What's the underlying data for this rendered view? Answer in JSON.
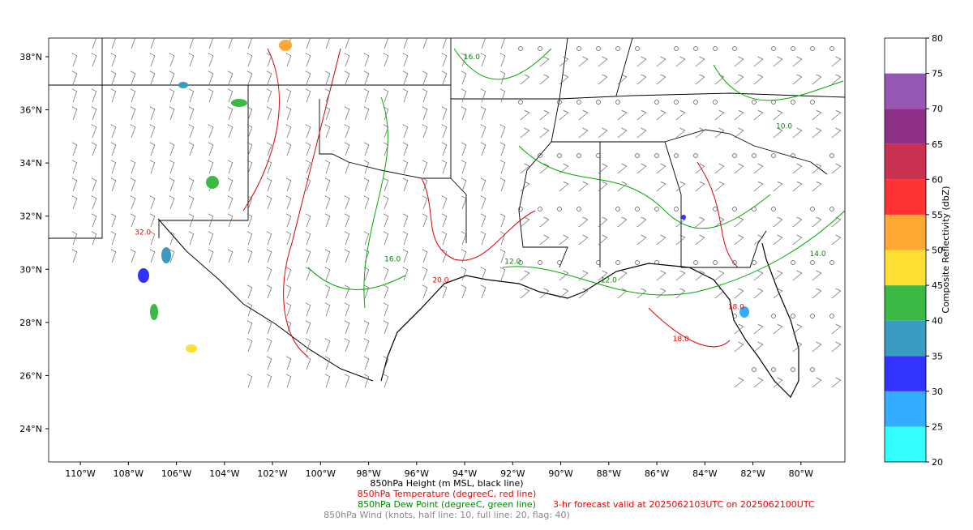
{
  "map": {
    "lon_range": [
      -111.32,
      -78.17
    ],
    "lat_range": [
      22.75,
      38.7
    ],
    "lon_ticks": [
      {
        "value": -110,
        "label": "110°W"
      },
      {
        "value": -108,
        "label": "108°W"
      },
      {
        "value": -106,
        "label": "106°W"
      },
      {
        "value": -104,
        "label": "104°W"
      },
      {
        "value": -102,
        "label": "102°W"
      },
      {
        "value": -100,
        "label": "100°W"
      },
      {
        "value": -98,
        "label": "98°W"
      },
      {
        "value": -96,
        "label": "96°W"
      },
      {
        "value": -94,
        "label": "94°W"
      },
      {
        "value": -92,
        "label": "92°W"
      },
      {
        "value": -90,
        "label": "90°W"
      },
      {
        "value": -88,
        "label": "88°W"
      },
      {
        "value": -86,
        "label": "86°W"
      },
      {
        "value": -84,
        "label": "84°W"
      },
      {
        "value": -82,
        "label": "82°W"
      },
      {
        "value": -80,
        "label": "80°W"
      }
    ],
    "lat_ticks": [
      {
        "value": 24,
        "label": "24°N"
      },
      {
        "value": 26,
        "label": "26°N"
      },
      {
        "value": 28,
        "label": "28°N"
      },
      {
        "value": 30,
        "label": "30°N"
      },
      {
        "value": 32,
        "label": "32°N"
      },
      {
        "value": 34,
        "label": "34°N"
      },
      {
        "value": 36,
        "label": "36°N"
      },
      {
        "value": 38,
        "label": "38°N"
      }
    ],
    "contour_labels": [
      {
        "text": "16.0",
        "lon": -93.7,
        "lat": 37.9,
        "color": "green"
      },
      {
        "text": "16.0",
        "lon": -97.0,
        "lat": 30.3,
        "color": "green"
      },
      {
        "text": "20.0",
        "lon": -95.0,
        "lat": 29.5,
        "color": "red"
      },
      {
        "text": "12.0",
        "lon": -92.0,
        "lat": 30.2,
        "color": "green"
      },
      {
        "text": "12.0",
        "lon": -88.0,
        "lat": 29.5,
        "color": "green"
      },
      {
        "text": "18.0",
        "lon": -82.7,
        "lat": 28.5,
        "color": "red"
      },
      {
        "text": "10.0",
        "lon": -80.7,
        "lat": 35.3,
        "color": "green"
      },
      {
        "text": "14.0",
        "lon": -79.3,
        "lat": 30.5,
        "color": "green"
      },
      {
        "text": "18.0",
        "lon": -85.0,
        "lat": 27.3,
        "color": "red"
      },
      {
        "text": "32.0",
        "lon": -107.4,
        "lat": 31.3,
        "color": "red"
      }
    ]
  },
  "colorbar": {
    "label": "Composite Reflectivity (dbZ)",
    "levels": [
      20,
      25,
      30,
      35,
      40,
      45,
      50,
      55,
      60,
      65,
      70,
      75,
      80
    ],
    "colors": [
      "#33ffff",
      "#33adff",
      "#3333ff",
      "#3a9abf",
      "#3cb944",
      "#ffde33",
      "#ffa833",
      "#ff3333",
      "#c83250",
      "#8e2f87",
      "#9559b5",
      "#ffffff"
    ]
  },
  "captions": {
    "height": "850hPa Height (m MSL, black line)",
    "temperature": "850hPa Temperature (degreeC, red line)",
    "dewpoint": "850hPa Dew Point (degreeC, green line)",
    "forecast": "3-hr forecast valid at 2025062103UTC on 2025062100UTC",
    "wind": "850hPa Wind (knots, half line: 10, full line: 20, flag: 40)"
  }
}
